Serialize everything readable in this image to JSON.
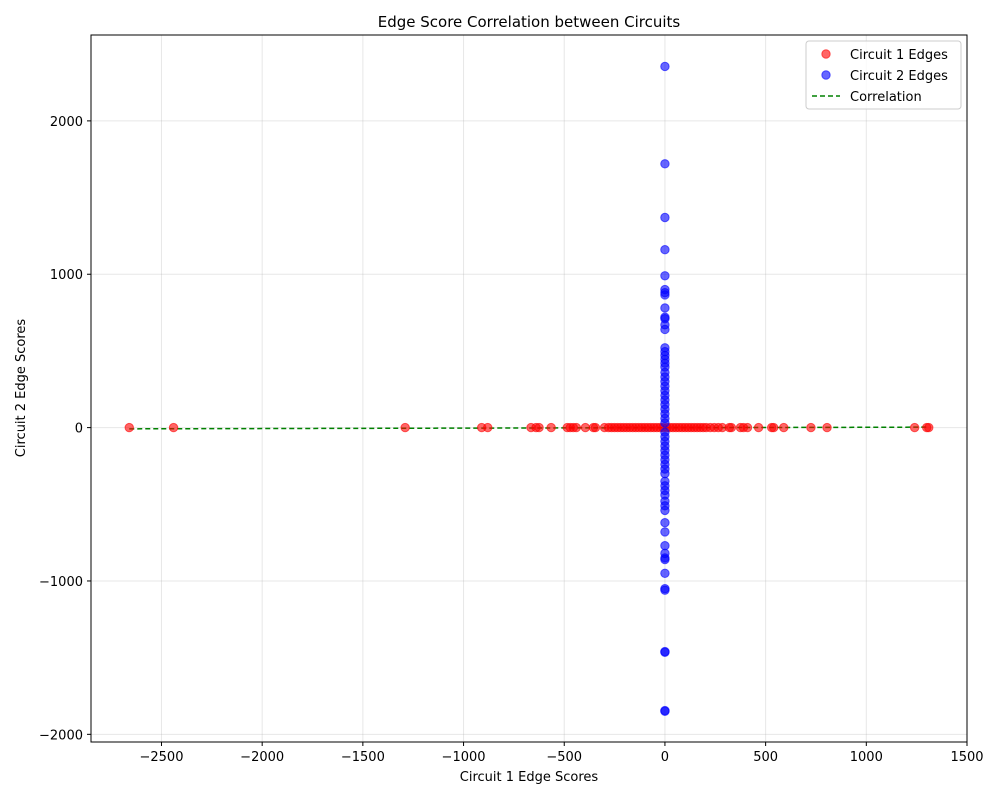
{
  "chart_data": {
    "type": "scatter",
    "title": "Edge Score Correlation between Circuits",
    "xlabel": "Circuit 1 Edge Scores",
    "ylabel": "Circuit 2 Edge Scores",
    "xlim": [
      -2850,
      1500
    ],
    "ylim": [
      -2050,
      2560
    ],
    "xticks": [
      -2500,
      -2000,
      -1500,
      -1000,
      -500,
      0,
      500,
      1000,
      1500
    ],
    "yticks": [
      -2000,
      -1000,
      0,
      1000,
      2000
    ],
    "grid": true,
    "legend_position": "top-right",
    "series": [
      {
        "name": "Circuit 1 Edges",
        "color": "#ff0000",
        "points": [
          [
            -2660,
            0
          ],
          [
            -2440,
            0
          ],
          [
            -1290,
            0
          ],
          [
            -910,
            0
          ],
          [
            -880,
            0
          ],
          [
            -665,
            0
          ],
          [
            -640,
            0
          ],
          [
            -625,
            0
          ],
          [
            -565,
            0
          ],
          [
            -485,
            0
          ],
          [
            -470,
            0
          ],
          [
            -455,
            0
          ],
          [
            -440,
            0
          ],
          [
            -395,
            0
          ],
          [
            -355,
            0
          ],
          [
            -345,
            0
          ],
          [
            -300,
            0
          ],
          [
            -280,
            0
          ],
          [
            -265,
            0
          ],
          [
            -250,
            0
          ],
          [
            -235,
            0
          ],
          [
            -220,
            0
          ],
          [
            -205,
            0
          ],
          [
            -190,
            0
          ],
          [
            -175,
            0
          ],
          [
            -160,
            0
          ],
          [
            -145,
            0
          ],
          [
            -130,
            0
          ],
          [
            -115,
            0
          ],
          [
            -100,
            0
          ],
          [
            -85,
            0
          ],
          [
            -70,
            0
          ],
          [
            -55,
            0
          ],
          [
            -40,
            0
          ],
          [
            -25,
            0
          ],
          [
            -10,
            0
          ],
          [
            10,
            0
          ],
          [
            25,
            0
          ],
          [
            40,
            0
          ],
          [
            55,
            0
          ],
          [
            70,
            0
          ],
          [
            85,
            0
          ],
          [
            100,
            0
          ],
          [
            115,
            0
          ],
          [
            130,
            0
          ],
          [
            145,
            0
          ],
          [
            160,
            0
          ],
          [
            175,
            0
          ],
          [
            190,
            0
          ],
          [
            205,
            0
          ],
          [
            225,
            0
          ],
          [
            245,
            0
          ],
          [
            265,
            0
          ],
          [
            285,
            0
          ],
          [
            320,
            0
          ],
          [
            330,
            0
          ],
          [
            375,
            0
          ],
          [
            390,
            0
          ],
          [
            410,
            0
          ],
          [
            465,
            0
          ],
          [
            530,
            0
          ],
          [
            540,
            0
          ],
          [
            590,
            0
          ],
          [
            725,
            0
          ],
          [
            805,
            0
          ],
          [
            1240,
            0
          ],
          [
            1300,
            0
          ],
          [
            1310,
            0
          ]
        ]
      },
      {
        "name": "Circuit 2 Edges",
        "color": "#0000ff",
        "points": [
          [
            0,
            2355
          ],
          [
            0,
            1720
          ],
          [
            0,
            1370
          ],
          [
            0,
            1160
          ],
          [
            0,
            990
          ],
          [
            0,
            900
          ],
          [
            0,
            880
          ],
          [
            0,
            865
          ],
          [
            0,
            780
          ],
          [
            0,
            720
          ],
          [
            0,
            710
          ],
          [
            0,
            670
          ],
          [
            0,
            640
          ],
          [
            0,
            520
          ],
          [
            0,
            495
          ],
          [
            0,
            470
          ],
          [
            0,
            445
          ],
          [
            0,
            420
          ],
          [
            0,
            395
          ],
          [
            0,
            360
          ],
          [
            0,
            330
          ],
          [
            0,
            300
          ],
          [
            0,
            270
          ],
          [
            0,
            240
          ],
          [
            0,
            210
          ],
          [
            0,
            180
          ],
          [
            0,
            150
          ],
          [
            0,
            120
          ],
          [
            0,
            90
          ],
          [
            0,
            60
          ],
          [
            0,
            30
          ],
          [
            0,
            -30
          ],
          [
            0,
            -60
          ],
          [
            0,
            -90
          ],
          [
            0,
            -120
          ],
          [
            0,
            -150
          ],
          [
            0,
            -180
          ],
          [
            0,
            -210
          ],
          [
            0,
            -240
          ],
          [
            0,
            -270
          ],
          [
            0,
            -300
          ],
          [
            0,
            -350
          ],
          [
            0,
            -380
          ],
          [
            0,
            -410
          ],
          [
            0,
            -440
          ],
          [
            0,
            -480
          ],
          [
            0,
            -510
          ],
          [
            0,
            -540
          ],
          [
            0,
            -620
          ],
          [
            0,
            -680
          ],
          [
            0,
            -770
          ],
          [
            0,
            -820
          ],
          [
            0,
            -850
          ],
          [
            0,
            -860
          ],
          [
            0,
            -950
          ],
          [
            0,
            -1050
          ],
          [
            0,
            -1060
          ],
          [
            0,
            -1460
          ],
          [
            0,
            -1465
          ],
          [
            0,
            -1845
          ],
          [
            0,
            -1850
          ]
        ]
      }
    ],
    "correlation_line": {
      "name": "Correlation",
      "color": "#008000",
      "x": [
        -2660,
        1310
      ],
      "y": [
        -8,
        3
      ]
    }
  }
}
